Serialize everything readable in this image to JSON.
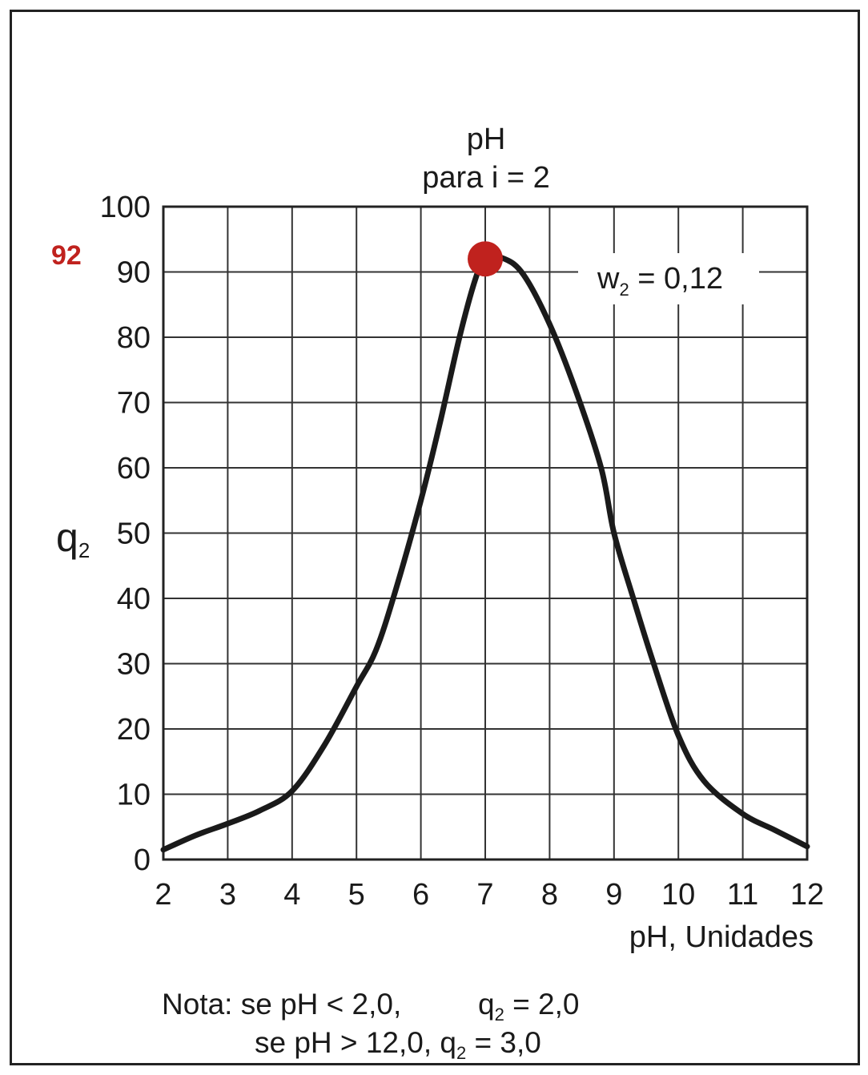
{
  "chart_data": {
    "type": "line",
    "title": "pH",
    "subtitle": "para i = 2",
    "ylabel": "q",
    "ylabel_sub": "2",
    "xlabel": "pH, Unidades",
    "xlim": [
      2,
      12
    ],
    "ylim": [
      0,
      100
    ],
    "x_ticks": [
      "2",
      "3",
      "4",
      "5",
      "6",
      "7",
      "8",
      "9",
      "10",
      "11",
      "12"
    ],
    "y_ticks": [
      "0",
      "10",
      "20",
      "30",
      "40",
      "50",
      "60",
      "70",
      "80",
      "90",
      "100"
    ],
    "grid": true,
    "line_color": "#1a1a1a",
    "series": [
      {
        "x": [
          2.0,
          2.5,
          3.0,
          3.5,
          4.0,
          4.5,
          5.0,
          5.3,
          5.6,
          6.0,
          6.3,
          6.6,
          6.85,
          7.0,
          7.3,
          7.6,
          8.0,
          8.4,
          8.8,
          9.0,
          9.3,
          9.6,
          10.0,
          10.4,
          11.0,
          11.5,
          12.0
        ],
        "y": [
          1.5,
          3.7,
          5.5,
          7.5,
          10.5,
          17.5,
          26.5,
          32.0,
          41.0,
          55.0,
          67.0,
          80.0,
          89.0,
          92.0,
          92.0,
          89.5,
          82.0,
          72.0,
          60.0,
          50.0,
          40.0,
          30.5,
          19.0,
          12.0,
          7.0,
          4.5,
          2.0
        ]
      }
    ],
    "annotation": {
      "text": "w",
      "sub": "2",
      "value": " = 0,12"
    },
    "highlight": {
      "label": "92",
      "x": 7,
      "y": 92,
      "color": "#c0221e"
    },
    "note": {
      "line1_prefix": "Nota: se pH < 2,0,",
      "line1_q": "q",
      "line1_sub": "2",
      "line1_value": " = 2,0",
      "line2_prefix": "se pH  > 12,0, ",
      "line2_q": "q",
      "line2_sub": "2",
      "line2_value": " = 3,0"
    }
  }
}
